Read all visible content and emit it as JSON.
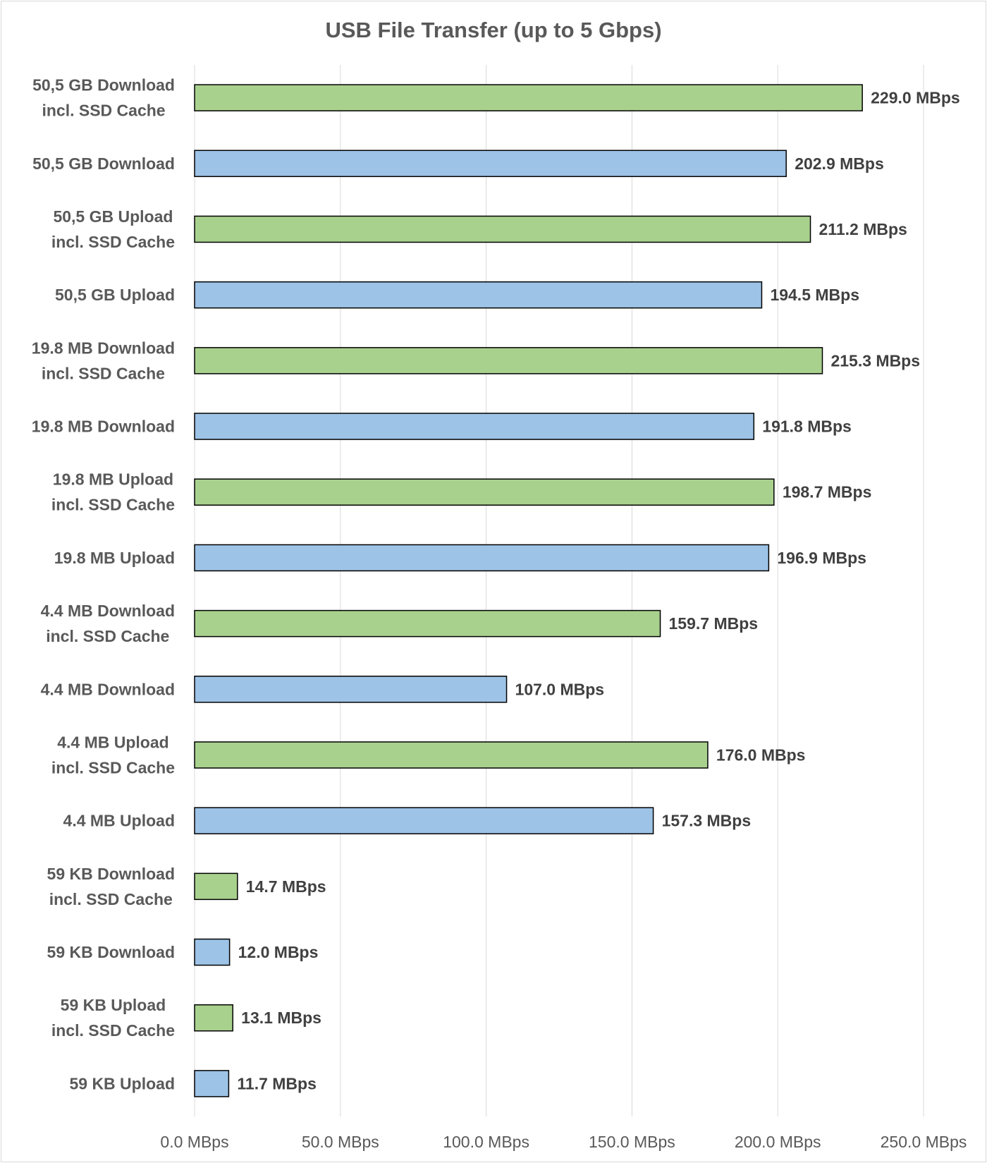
{
  "chart_data": {
    "type": "bar",
    "orientation": "horizontal",
    "title": "USB File Transfer (up to 5 Gbps)",
    "xlabel": "",
    "ylabel": "",
    "xlim": [
      0,
      250
    ],
    "x_ticks": [
      "0.0 MBps",
      "50.0 MBps",
      "100.0 MBps",
      "150.0 MBps",
      "200.0 MBps",
      "250.0 MBps"
    ],
    "grid": "vertical",
    "legend": "none",
    "colors": {
      "incl_ssd_cache": "#a9d18e",
      "plain": "#9dc3e6",
      "border": "#000000"
    },
    "categories": [
      "50,5 GB Download\nincl. SSD Cache",
      "50,5 GB Download",
      "50,5 GB Upload\nincl. SSD Cache",
      "50,5 GB Upload",
      "19.8 MB Download\nincl. SSD Cache",
      "19.8 MB Download",
      "19.8 MB Upload\nincl. SSD Cache",
      "19.8 MB Upload",
      "4.4 MB Download\nincl. SSD Cache",
      "4.4 MB Download",
      "4.4 MB Upload\nincl. SSD Cache",
      "4.4 MB Upload",
      "59 KB Download\nincl. SSD Cache",
      "59 KB Download",
      "59 KB Upload\nincl. SSD Cache",
      "59 KB Upload"
    ],
    "values": [
      229.0,
      202.9,
      211.2,
      194.5,
      215.3,
      191.8,
      198.7,
      196.9,
      159.7,
      107.0,
      176.0,
      157.3,
      14.7,
      12.0,
      13.1,
      11.7
    ],
    "data_labels": [
      "229.0 MBps",
      "202.9 MBps",
      "211.2 MBps",
      "194.5 MBps",
      "215.3 MBps",
      "191.8 MBps",
      "198.7 MBps",
      "196.9 MBps",
      "159.7 MBps",
      "107.0 MBps",
      "176.0 MBps",
      "157.3 MBps",
      "14.7 MBps",
      "12.0 MBps",
      "13.1 MBps",
      "11.7 MBps"
    ]
  }
}
